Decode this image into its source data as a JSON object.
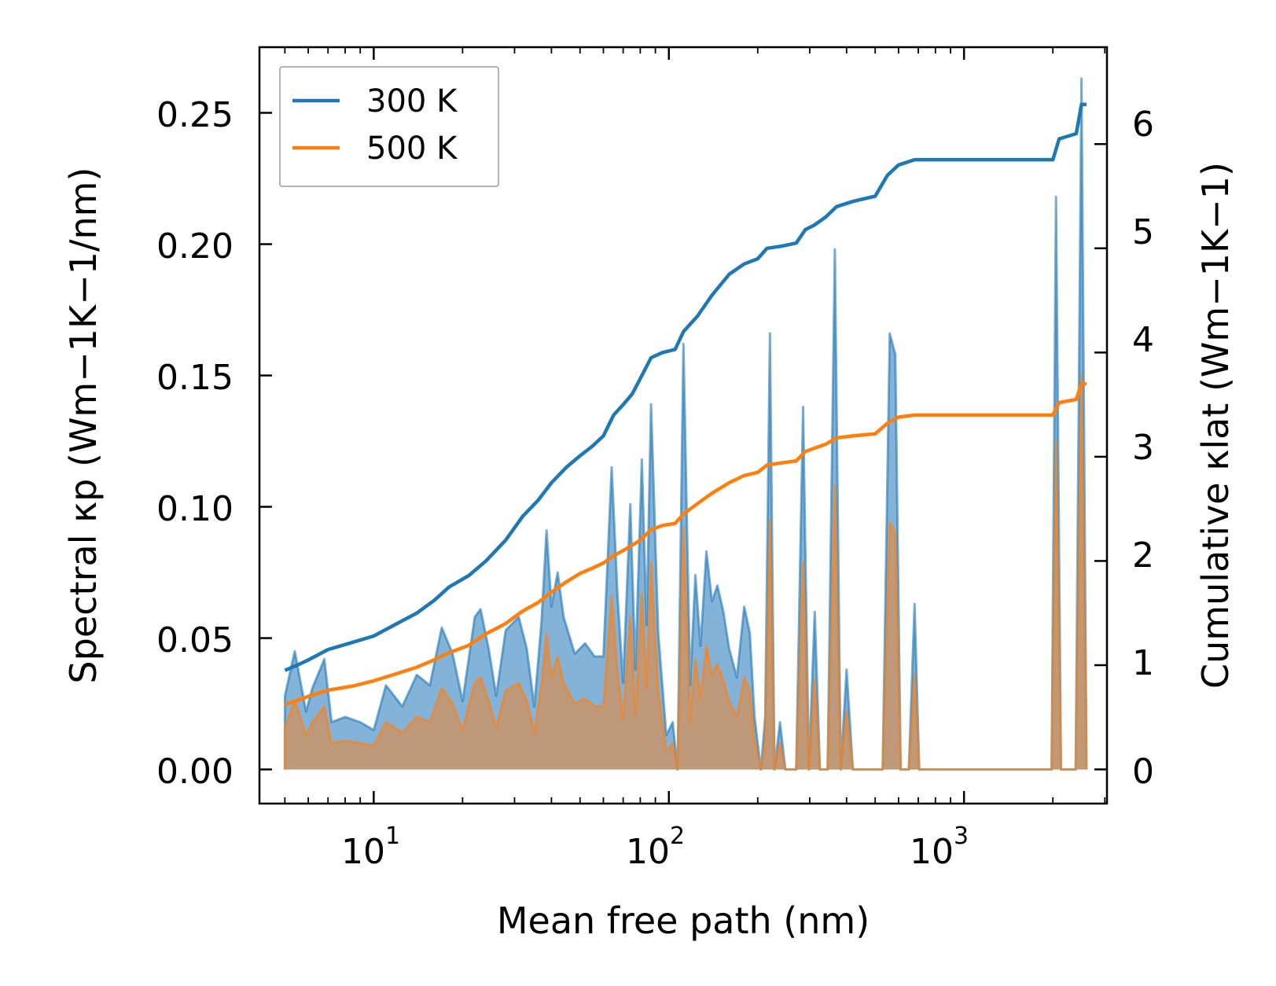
{
  "chart_data": {
    "type": "line",
    "xlabel": "Mean free path (nm)",
    "ylabel_left": "Spectral κp (Wm−1K−1/nm)",
    "ylabel_right": "Cumulative κlat (Wm−1K−1)",
    "xscale": "log",
    "xlim": [
      4.1,
      3050
    ],
    "ylim_left": [
      -0.013,
      0.275
    ],
    "ylim_right": [
      -0.328,
      6.93
    ],
    "x_ticks": [
      10,
      100,
      1000
    ],
    "x_tick_labels": [
      {
        "base": "10",
        "exp": "1"
      },
      {
        "base": "10",
        "exp": "2"
      },
      {
        "base": "10",
        "exp": "3"
      }
    ],
    "y_left_ticks": [
      0.0,
      0.05,
      0.1,
      0.15,
      0.2,
      0.25
    ],
    "y_left_tick_labels": [
      "0.00",
      "0.05",
      "0.10",
      "0.15",
      "0.20",
      "0.25"
    ],
    "y_right_ticks": [
      0,
      1,
      2,
      3,
      4,
      5,
      6
    ],
    "y_right_tick_labels": [
      "0",
      "1",
      "2",
      "3",
      "4",
      "5",
      "6"
    ],
    "legend": {
      "position": "upper-left",
      "entries": [
        {
          "label": "300 K",
          "color": "#1f77b4"
        },
        {
          "label": "500 K",
          "color": "#ff7f0e"
        }
      ]
    },
    "colors": {
      "s300": "#1f77b4",
      "s500": "#ff7f0e",
      "fill300": "#6fa6d2",
      "fill500": "#c89468"
    },
    "spectral": [
      {
        "name": "300 K",
        "axis": "left",
        "points": [
          [
            5.0,
            0.0
          ],
          [
            5.0,
            0.028
          ],
          [
            5.4,
            0.045
          ],
          [
            5.9,
            0.022
          ],
          [
            6.2,
            0.031
          ],
          [
            6.8,
            0.042
          ],
          [
            7.2,
            0.018
          ],
          [
            8.0,
            0.02
          ],
          [
            9.0,
            0.018
          ],
          [
            10.0,
            0.015
          ],
          [
            11.0,
            0.032
          ],
          [
            12.5,
            0.024
          ],
          [
            14.0,
            0.036
          ],
          [
            15.5,
            0.032
          ],
          [
            17.0,
            0.054
          ],
          [
            18.5,
            0.044
          ],
          [
            20.0,
            0.026
          ],
          [
            22.0,
            0.058
          ],
          [
            23.0,
            0.061
          ],
          [
            24.5,
            0.046
          ],
          [
            26.0,
            0.028
          ],
          [
            28.0,
            0.053
          ],
          [
            31.0,
            0.058
          ],
          [
            33.0,
            0.046
          ],
          [
            35.0,
            0.024
          ],
          [
            37.0,
            0.056
          ],
          [
            38.5,
            0.091
          ],
          [
            40.0,
            0.062
          ],
          [
            42.0,
            0.075
          ],
          [
            44.0,
            0.058
          ],
          [
            48.0,
            0.044
          ],
          [
            52.0,
            0.048
          ],
          [
            56.0,
            0.043
          ],
          [
            60.0,
            0.043
          ],
          [
            64.0,
            0.115
          ],
          [
            67.0,
            0.066
          ],
          [
            70.0,
            0.033
          ],
          [
            74.0,
            0.101
          ],
          [
            77.0,
            0.038
          ],
          [
            81.0,
            0.118
          ],
          [
            84.0,
            0.055
          ],
          [
            87.0,
            0.139
          ],
          [
            92.0,
            0.052
          ],
          [
            98.0,
            0.013
          ],
          [
            103.0,
            0.018
          ],
          [
            107.0,
            0.0
          ],
          [
            112.0,
            0.162
          ],
          [
            118.0,
            0.032
          ],
          [
            123.0,
            0.074
          ],
          [
            128.0,
            0.047
          ],
          [
            134.0,
            0.083
          ],
          [
            140.0,
            0.064
          ],
          [
            146.0,
            0.07
          ],
          [
            153.0,
            0.06
          ],
          [
            160.0,
            0.046
          ],
          [
            170.0,
            0.035
          ],
          [
            180.0,
            0.062
          ],
          [
            188.0,
            0.052
          ],
          [
            195.0,
            0.02
          ],
          [
            205.0,
            0.0
          ],
          [
            212.0,
            0.02
          ],
          [
            220.0,
            0.166
          ],
          [
            228.0,
            0.0
          ],
          [
            238.0,
            0.018
          ],
          [
            248.0,
            0.0
          ],
          [
            270.0,
            0.0
          ],
          [
            285.0,
            0.138
          ],
          [
            298.0,
            0.0
          ],
          [
            312.0,
            0.06
          ],
          [
            325.0,
            0.0
          ],
          [
            345.0,
            0.0
          ],
          [
            365.0,
            0.198
          ],
          [
            382.0,
            0.0
          ],
          [
            400.0,
            0.038
          ],
          [
            420.0,
            0.0
          ],
          [
            530.0,
            0.0
          ],
          [
            560.0,
            0.166
          ],
          [
            585.0,
            0.158
          ],
          [
            610.0,
            0.0
          ],
          [
            650.0,
            0.0
          ],
          [
            680.0,
            0.063
          ],
          [
            705.0,
            0.0
          ],
          [
            1980.0,
            0.0
          ],
          [
            2050.0,
            0.218
          ],
          [
            2130.0,
            0.0
          ],
          [
            2390.0,
            0.0
          ],
          [
            2500.0,
            0.263
          ],
          [
            2600.0,
            0.0
          ]
        ]
      },
      {
        "name": "500 K",
        "axis": "left",
        "points": [
          [
            5.0,
            0.0
          ],
          [
            5.0,
            0.016
          ],
          [
            5.4,
            0.026
          ],
          [
            5.9,
            0.013
          ],
          [
            6.2,
            0.018
          ],
          [
            6.8,
            0.024
          ],
          [
            7.2,
            0.01
          ],
          [
            8.0,
            0.011
          ],
          [
            9.0,
            0.01
          ],
          [
            10.0,
            0.009
          ],
          [
            11.0,
            0.018
          ],
          [
            12.5,
            0.014
          ],
          [
            14.0,
            0.02
          ],
          [
            15.5,
            0.018
          ],
          [
            17.0,
            0.031
          ],
          [
            18.5,
            0.025
          ],
          [
            20.0,
            0.015
          ],
          [
            22.0,
            0.033
          ],
          [
            23.0,
            0.035
          ],
          [
            24.5,
            0.026
          ],
          [
            26.0,
            0.016
          ],
          [
            28.0,
            0.03
          ],
          [
            31.0,
            0.033
          ],
          [
            33.0,
            0.026
          ],
          [
            35.0,
            0.014
          ],
          [
            37.0,
            0.032
          ],
          [
            38.5,
            0.052
          ],
          [
            40.0,
            0.035
          ],
          [
            42.0,
            0.043
          ],
          [
            44.0,
            0.033
          ],
          [
            48.0,
            0.025
          ],
          [
            52.0,
            0.027
          ],
          [
            56.0,
            0.024
          ],
          [
            60.0,
            0.024
          ],
          [
            64.0,
            0.066
          ],
          [
            67.0,
            0.037
          ],
          [
            70.0,
            0.019
          ],
          [
            74.0,
            0.058
          ],
          [
            77.0,
            0.021
          ],
          [
            81.0,
            0.067
          ],
          [
            84.0,
            0.031
          ],
          [
            87.0,
            0.079
          ],
          [
            92.0,
            0.03
          ],
          [
            98.0,
            0.007
          ],
          [
            103.0,
            0.01
          ],
          [
            107.0,
            0.0
          ],
          [
            112.0,
            0.092
          ],
          [
            118.0,
            0.018
          ],
          [
            123.0,
            0.042
          ],
          [
            128.0,
            0.027
          ],
          [
            134.0,
            0.047
          ],
          [
            140.0,
            0.036
          ],
          [
            146.0,
            0.04
          ],
          [
            153.0,
            0.034
          ],
          [
            160.0,
            0.026
          ],
          [
            170.0,
            0.02
          ],
          [
            180.0,
            0.035
          ],
          [
            188.0,
            0.03
          ],
          [
            195.0,
            0.011
          ],
          [
            205.0,
            0.0
          ],
          [
            212.0,
            0.011
          ],
          [
            220.0,
            0.095
          ],
          [
            228.0,
            0.0
          ],
          [
            238.0,
            0.01
          ],
          [
            248.0,
            0.0
          ],
          [
            270.0,
            0.0
          ],
          [
            285.0,
            0.079
          ],
          [
            298.0,
            0.0
          ],
          [
            312.0,
            0.034
          ],
          [
            325.0,
            0.0
          ],
          [
            345.0,
            0.0
          ],
          [
            365.0,
            0.108
          ],
          [
            382.0,
            0.0
          ],
          [
            400.0,
            0.022
          ],
          [
            420.0,
            0.0
          ],
          [
            530.0,
            0.0
          ],
          [
            560.0,
            0.094
          ],
          [
            585.0,
            0.09
          ],
          [
            610.0,
            0.0
          ],
          [
            650.0,
            0.0
          ],
          [
            680.0,
            0.036
          ],
          [
            705.0,
            0.0
          ],
          [
            1980.0,
            0.0
          ],
          [
            2050.0,
            0.125
          ],
          [
            2130.0,
            0.0
          ],
          [
            2390.0,
            0.0
          ],
          [
            2500.0,
            0.15
          ],
          [
            2600.0,
            0.0
          ]
        ]
      }
    ],
    "cumulative": [
      {
        "name": "300 K",
        "axis": "right",
        "points": [
          [
            5.0,
            0.95
          ],
          [
            5.5,
            1.0
          ],
          [
            6.0,
            1.05
          ],
          [
            7.0,
            1.15
          ],
          [
            8.5,
            1.22
          ],
          [
            10.0,
            1.28
          ],
          [
            12.0,
            1.4
          ],
          [
            14.0,
            1.5
          ],
          [
            16.0,
            1.62
          ],
          [
            18.0,
            1.75
          ],
          [
            21.0,
            1.86
          ],
          [
            24.0,
            2.0
          ],
          [
            28.0,
            2.2
          ],
          [
            32.0,
            2.43
          ],
          [
            36.0,
            2.58
          ],
          [
            40.0,
            2.75
          ],
          [
            45.0,
            2.9
          ],
          [
            50.0,
            3.01
          ],
          [
            55.0,
            3.1
          ],
          [
            60.0,
            3.2
          ],
          [
            65.0,
            3.4
          ],
          [
            70.0,
            3.5
          ],
          [
            75.0,
            3.6
          ],
          [
            80.0,
            3.75
          ],
          [
            87.0,
            3.95
          ],
          [
            95.0,
            4.0
          ],
          [
            105.0,
            4.03
          ],
          [
            112.0,
            4.2
          ],
          [
            125.0,
            4.35
          ],
          [
            140.0,
            4.55
          ],
          [
            160.0,
            4.75
          ],
          [
            180.0,
            4.85
          ],
          [
            200.0,
            4.9
          ],
          [
            215.0,
            5.0
          ],
          [
            240.0,
            5.02
          ],
          [
            270.0,
            5.05
          ],
          [
            290.0,
            5.18
          ],
          [
            310.0,
            5.22
          ],
          [
            340.0,
            5.3
          ],
          [
            370.0,
            5.4
          ],
          [
            420.0,
            5.45
          ],
          [
            500.0,
            5.5
          ],
          [
            550.0,
            5.7
          ],
          [
            600.0,
            5.8
          ],
          [
            680.0,
            5.85
          ],
          [
            2000.0,
            5.85
          ],
          [
            2100.0,
            6.05
          ],
          [
            2400.0,
            6.1
          ],
          [
            2500.0,
            6.38
          ],
          [
            2600.0,
            6.38
          ]
        ]
      },
      {
        "name": "500 K",
        "axis": "right",
        "points": [
          [
            5.0,
            0.62
          ],
          [
            6.0,
            0.7
          ],
          [
            7.0,
            0.76
          ],
          [
            8.5,
            0.8
          ],
          [
            10.0,
            0.85
          ],
          [
            12.0,
            0.92
          ],
          [
            14.0,
            0.98
          ],
          [
            16.0,
            1.05
          ],
          [
            18.0,
            1.12
          ],
          [
            21.0,
            1.19
          ],
          [
            24.0,
            1.3
          ],
          [
            28.0,
            1.4
          ],
          [
            32.0,
            1.52
          ],
          [
            36.0,
            1.6
          ],
          [
            40.0,
            1.7
          ],
          [
            45.0,
            1.8
          ],
          [
            50.0,
            1.88
          ],
          [
            55.0,
            1.93
          ],
          [
            60.0,
            1.98
          ],
          [
            65.0,
            2.05
          ],
          [
            70.0,
            2.1
          ],
          [
            75.0,
            2.15
          ],
          [
            80.0,
            2.2
          ],
          [
            87.0,
            2.3
          ],
          [
            95.0,
            2.34
          ],
          [
            105.0,
            2.36
          ],
          [
            112.0,
            2.45
          ],
          [
            125.0,
            2.55
          ],
          [
            140.0,
            2.65
          ],
          [
            160.0,
            2.75
          ],
          [
            180.0,
            2.82
          ],
          [
            200.0,
            2.85
          ],
          [
            215.0,
            2.92
          ],
          [
            240.0,
            2.94
          ],
          [
            270.0,
            2.96
          ],
          [
            290.0,
            3.05
          ],
          [
            310.0,
            3.08
          ],
          [
            340.0,
            3.12
          ],
          [
            370.0,
            3.18
          ],
          [
            420.0,
            3.2
          ],
          [
            500.0,
            3.22
          ],
          [
            550.0,
            3.32
          ],
          [
            600.0,
            3.38
          ],
          [
            680.0,
            3.4
          ],
          [
            2000.0,
            3.4
          ],
          [
            2100.0,
            3.52
          ],
          [
            2400.0,
            3.55
          ],
          [
            2500.0,
            3.7
          ],
          [
            2600.0,
            3.7
          ]
        ]
      }
    ]
  }
}
